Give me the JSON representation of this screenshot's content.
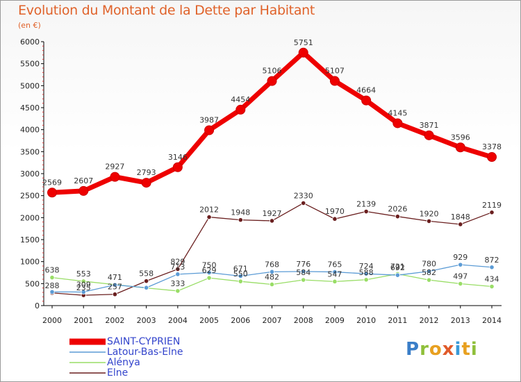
{
  "title": "Evolution du Montant de la Dette par Habitant",
  "subtitle": "(en €)",
  "chart_data": {
    "type": "line",
    "x": [
      "2000",
      "2001",
      "2002",
      "2003",
      "2004",
      "2005",
      "2006",
      "2007",
      "2008",
      "2009",
      "2010",
      "2011",
      "2012",
      "2013",
      "2014"
    ],
    "ylim": [
      0,
      6000
    ],
    "yticks": [
      0,
      500,
      1000,
      1500,
      2000,
      2500,
      3000,
      3500,
      4000,
      4500,
      5000,
      5500,
      6000
    ],
    "grid": false,
    "legend_position": "bottom-left",
    "series": [
      {
        "name": "SAINT-CYPRIEN",
        "color": "#ee0000",
        "values": [
          2569,
          2607,
          2927,
          2793,
          3146,
          3987,
          4454,
          5106,
          5751,
          5107,
          4664,
          4145,
          3871,
          3596,
          3378
        ],
        "labels": [
          "2569",
          "2607",
          "2927",
          "2793",
          "3146",
          "3987",
          "4454",
          "5106",
          "5751",
          "5107",
          "4664",
          "4145",
          "3871",
          "3596",
          "3378"
        ]
      },
      {
        "name": "Latour-Bas-Elne",
        "color": "#5b9bd5",
        "values": [
          312,
          309,
          471,
          407,
          713,
          750,
          671,
          768,
          776,
          765,
          724,
          692,
          780,
          929,
          872
        ],
        "labels": [
          "",
          "309",
          "471",
          "",
          "713",
          "750",
          "671",
          "768",
          "776",
          "765",
          "724",
          "692",
          "780",
          "929",
          "872"
        ]
      },
      {
        "name": "Alénya",
        "color": "#99dd66",
        "values": [
          638,
          553,
          477,
          401,
          333,
          629,
          550,
          482,
          584,
          547,
          588,
          721,
          582,
          497,
          434
        ],
        "labels": [
          "638",
          "553",
          "",
          "",
          "333",
          "629",
          "550",
          "482",
          "584",
          "547",
          "588",
          "721",
          "582",
          "497",
          "434"
        ]
      },
      {
        "name": "Elne",
        "color": "#6a1f1f",
        "values": [
          288,
          235,
          257,
          558,
          829,
          2012,
          1948,
          1927,
          2330,
          1970,
          2139,
          2026,
          1920,
          1848,
          2119
        ],
        "labels": [
          "288",
          "235",
          "257",
          "558",
          "829",
          "2012",
          "1948",
          "1927",
          "2330",
          "1970",
          "2139",
          "2026",
          "1920",
          "1848",
          "2119"
        ]
      }
    ]
  },
  "legend_text_color": "#3344cc",
  "logo": {
    "text": "Proxiti"
  }
}
